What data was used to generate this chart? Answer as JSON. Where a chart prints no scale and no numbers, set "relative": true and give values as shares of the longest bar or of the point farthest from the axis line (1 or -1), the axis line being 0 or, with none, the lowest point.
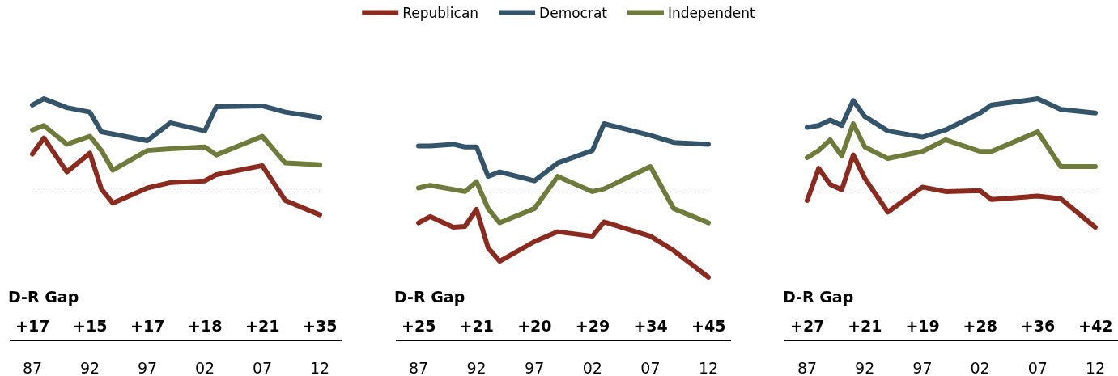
{
  "chart_data": [
    {
      "type": "line",
      "relative": true,
      "legend": false,
      "grid": false,
      "marker": "none",
      "line_style": "solid",
      "xlim": [
        1987,
        2012
      ],
      "xticks": [
        {
          "value": 1987,
          "label": "87"
        },
        {
          "value": 1992,
          "label": "92"
        },
        {
          "value": 1997,
          "label": "97"
        },
        {
          "value": 2002,
          "label": "02"
        },
        {
          "value": 2007,
          "label": "07"
        },
        {
          "value": 2012,
          "label": "12"
        }
      ],
      "ref_lines": [
        {
          "axis": "y",
          "value": 0,
          "color": "#808080",
          "line_style": "dashed"
        }
      ],
      "annotations": [
        "D-R Gap",
        "+17",
        "+15",
        "+17",
        "+18",
        "+21",
        "+35"
      ],
      "series": [
        {
          "color": "#8b2a1e",
          "x": [
            1987,
            1988,
            1990,
            1992,
            1993,
            1994,
            1997,
            1999,
            2002,
            2003,
            2007,
            2009,
            2012
          ],
          "values": [
            0.38,
            0.56,
            0.18,
            0.39,
            -0.01,
            -0.17,
            0.0,
            0.06,
            0.08,
            0.15,
            0.25,
            -0.14,
            -0.3
          ]
        },
        {
          "color": "#34546a",
          "x": [
            1987,
            1988,
            1990,
            1992,
            1993,
            1997,
            1999,
            2002,
            2003,
            2007,
            2009,
            2012
          ],
          "values": [
            0.93,
            1.0,
            0.9,
            0.85,
            0.63,
            0.53,
            0.73,
            0.64,
            0.91,
            0.92,
            0.85,
            0.79
          ]
        },
        {
          "color": "#6e7b3a",
          "x": [
            1987,
            1988,
            1990,
            1992,
            1993,
            1994,
            1997,
            1999,
            2002,
            2003,
            2007,
            2009,
            2012
          ],
          "values": [
            0.65,
            0.7,
            0.49,
            0.58,
            0.42,
            0.2,
            0.42,
            0.44,
            0.46,
            0.37,
            0.58,
            0.28,
            0.26
          ]
        }
      ]
    },
    {
      "type": "line",
      "relative": true,
      "legend": "top",
      "grid": false,
      "marker": "none",
      "line_style": "solid",
      "xlim": [
        1987,
        2012
      ],
      "xticks": [
        {
          "value": 1987,
          "label": "87"
        },
        {
          "value": 1992,
          "label": "92"
        },
        {
          "value": 1997,
          "label": "97"
        },
        {
          "value": 2002,
          "label": "02"
        },
        {
          "value": 2007,
          "label": "07"
        },
        {
          "value": 2012,
          "label": "12"
        }
      ],
      "ref_lines": [
        {
          "axis": "y",
          "value": 0,
          "color": "#808080",
          "line_style": "dashed"
        }
      ],
      "annotations": [
        "D-R Gap",
        "+25",
        "+21",
        "+20",
        "+29",
        "+34",
        "+45"
      ],
      "series": [
        {
          "name": "Republican",
          "color": "#8b2a1e",
          "x": [
            1987,
            1988,
            1990,
            1991,
            1992,
            1993,
            1994,
            1997,
            1999,
            2002,
            2003,
            2007,
            2009,
            2012
          ],
          "values": [
            -0.39,
            -0.32,
            -0.44,
            -0.43,
            -0.24,
            -0.67,
            -0.82,
            -0.6,
            -0.49,
            -0.54,
            -0.38,
            -0.54,
            -0.7,
            -1
          ]
        },
        {
          "name": "Democrat",
          "color": "#34546a",
          "x": [
            1987,
            1988,
            1990,
            1991,
            1992,
            1993,
            1994,
            1997,
            1999,
            2002,
            2003,
            2007,
            2009,
            2012
          ],
          "values": [
            0.47,
            0.47,
            0.49,
            0.46,
            0.46,
            0.13,
            0.18,
            0.08,
            0.28,
            0.42,
            0.72,
            0.59,
            0.51,
            0.49
          ]
        },
        {
          "name": "Independent",
          "color": "#6e7b3a",
          "x": [
            1987,
            1988,
            1991,
            1992,
            1993,
            1994,
            1997,
            1999,
            2002,
            2003,
            2007,
            2009,
            2012
          ],
          "values": [
            0,
            0.03,
            -0.04,
            0.07,
            -0.23,
            -0.39,
            -0.23,
            0.13,
            -0.04,
            -0.01,
            0.24,
            -0.23,
            -0.39
          ]
        }
      ]
    },
    {
      "type": "line",
      "relative": true,
      "legend": false,
      "grid": false,
      "marker": "none",
      "line_style": "solid",
      "xlim": [
        1987,
        2012
      ],
      "xticks": [
        {
          "value": 1987,
          "label": "87"
        },
        {
          "value": 1992,
          "label": "92"
        },
        {
          "value": 1997,
          "label": "97"
        },
        {
          "value": 2002,
          "label": "02"
        },
        {
          "value": 2007,
          "label": "07"
        },
        {
          "value": 2012,
          "label": "12"
        }
      ],
      "ref_lines": [
        {
          "axis": "y",
          "value": 0,
          "color": "#808080",
          "line_style": "dashed"
        }
      ],
      "annotations": [
        "D-R Gap",
        "+27",
        "+21",
        "+19",
        "+28",
        "+36",
        "+42"
      ],
      "series": [
        {
          "color": "#8b2a1e",
          "x": [
            1987,
            1988,
            1989,
            1990,
            1991,
            1992,
            1994,
            1997,
            1999,
            2002,
            2003,
            2007,
            2009,
            2012
          ],
          "values": [
            -0.14,
            0.22,
            0.04,
            -0.02,
            0.37,
            0.11,
            -0.27,
            0.01,
            -0.04,
            -0.03,
            -0.13,
            -0.09,
            -0.12,
            -0.44
          ]
        },
        {
          "color": "#34546a",
          "x": [
            1987,
            1988,
            1989,
            1990,
            1991,
            1992,
            1994,
            1997,
            1999,
            2002,
            2003,
            2007,
            2009,
            2012
          ],
          "values": [
            0.68,
            0.7,
            0.76,
            0.7,
            0.98,
            0.8,
            0.64,
            0.57,
            0.65,
            0.84,
            0.93,
            1.0,
            0.88,
            0.84
          ]
        },
        {
          "color": "#6e7b3a",
          "x": [
            1987,
            1988,
            1989,
            1990,
            1991,
            1992,
            1994,
            1997,
            1999,
            2002,
            2003,
            2007,
            2009,
            2012
          ],
          "values": [
            0.34,
            0.42,
            0.54,
            0.36,
            0.72,
            0.46,
            0.33,
            0.41,
            0.54,
            0.41,
            0.41,
            0.63,
            0.24,
            0.24
          ]
        }
      ]
    }
  ]
}
